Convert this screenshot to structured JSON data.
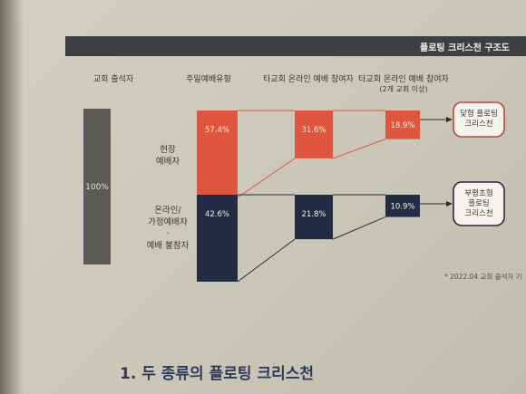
{
  "header": {
    "title": "플로팅 크리스천 구조도"
  },
  "chart_data": {
    "type": "bar",
    "title": "",
    "columns": [
      "교회 출석자",
      "주일예배유형",
      "타교회 온라인 예배 참여자",
      "타교회 온라인 예배 참여자"
    ],
    "column_note": "(2개 교회 이상)",
    "total": {
      "value": 100,
      "label": "100%"
    },
    "series": [
      {
        "name": "현장 예배자",
        "name_lines": [
          "현장",
          "예배자"
        ],
        "values": [
          57.4,
          31.6,
          18.9
        ],
        "labels": [
          "57.4%",
          "31.6%",
          "18.9%"
        ],
        "color": "#e0553d",
        "result": [
          "닻형 플로팅",
          "크리스천"
        ],
        "result_border": "#c0453d"
      },
      {
        "name": "온라인/ 가정예배자 · 예배 불참자",
        "name_lines": [
          "온라인/",
          "가정예배자",
          "·",
          "예배 불참자"
        ],
        "values": [
          42.6,
          21.8,
          10.9
        ],
        "labels": [
          "42.6%",
          "21.8%",
          "10.9%"
        ],
        "color": "#232c44",
        "result": [
          "부평초형",
          "플로팅",
          "크리스천"
        ],
        "result_border": "#232c44"
      }
    ]
  },
  "footnote": "* 2022.04 교회 출석자 기",
  "section": {
    "heading": "1. 두 종류의 플로팅 크리스천"
  }
}
